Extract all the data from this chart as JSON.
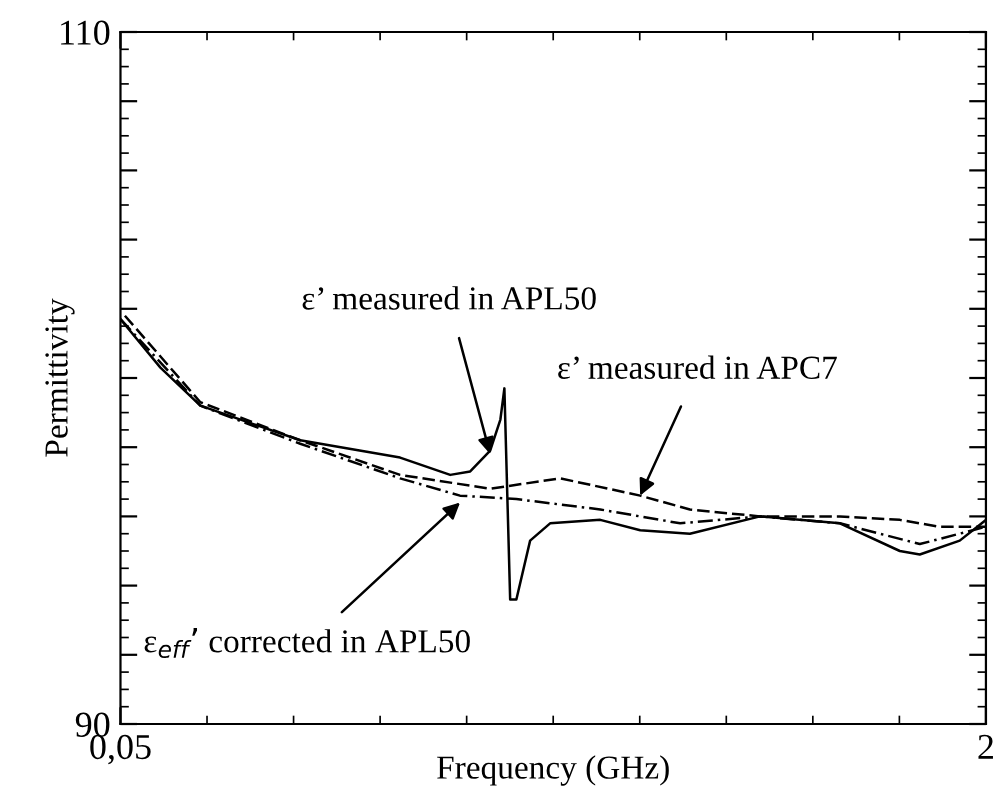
{
  "chart_data": {
    "type": "line",
    "xlabel": "Frequency (GHz)",
    "ylabel": "Permittivity",
    "xlim": [
      0.05,
      2
    ],
    "ylim": [
      90,
      110
    ],
    "xticks": [
      {
        "value": 0.05,
        "label": "0,05"
      },
      2
    ],
    "yticks": [
      90,
      {
        "value": 92,
        "label": null
      },
      {
        "value": 94,
        "label": null
      },
      {
        "value": 96,
        "label": null
      },
      {
        "value": 98,
        "label": null
      },
      {
        "value": 100,
        "label": null
      },
      {
        "value": 102,
        "label": null
      },
      {
        "value": 104,
        "label": null
      },
      {
        "value": 106,
        "label": null
      },
      {
        "value": 108,
        "label": null
      },
      110
    ],
    "grid": false,
    "legend": false,
    "marker": "none",
    "series": [
      {
        "color": "#000000",
        "line_style": "solid",
        "x": [
          0.05,
          0.14,
          0.23,
          0.455,
          0.68,
          0.793,
          0.838,
          0.883,
          0.906,
          0.915,
          0.928,
          0.942,
          0.973,
          1.018,
          1.131,
          1.221,
          1.333,
          1.491,
          1.671,
          1.806,
          1.851,
          1.941,
          2.0
        ],
        "values": [
          101.7,
          100.3,
          99.2,
          98.2,
          97.7,
          97.2,
          97.3,
          97.9,
          98.8,
          99.7,
          93.6,
          93.6,
          95.3,
          95.8,
          95.9,
          95.6,
          95.5,
          96.0,
          95.8,
          95.0,
          94.9,
          95.3,
          95.9
        ]
      },
      {
        "color": "#000000",
        "line_style": "dashed",
        "x": [
          0.06,
          0.23,
          0.455,
          0.68,
          0.883,
          1.041,
          1.221,
          1.333,
          1.491,
          1.671,
          1.806,
          1.896,
          2.0
        ],
        "values": [
          101.8,
          99.3,
          98.2,
          97.2,
          96.8,
          97.1,
          96.6,
          96.2,
          96.0,
          96.0,
          95.9,
          95.7,
          95.7
        ]
      },
      {
        "color": "#000000",
        "line_style": "dashdot",
        "x": [
          0.05,
          0.23,
          0.455,
          0.68,
          0.815,
          0.942,
          1.131,
          1.311,
          1.491,
          1.671,
          1.851,
          2.0
        ],
        "values": [
          101.7,
          99.2,
          98.1,
          97.1,
          96.6,
          96.5,
          96.2,
          95.8,
          96.0,
          95.8,
          95.2,
          95.7
        ]
      }
    ],
    "annotations": [
      {
        "text": "ε’ measured in APL50",
        "x": 0.883,
        "y": 97.8
      },
      {
        "text": "ε’ measured in APC7",
        "x": 1.221,
        "y": 96.6
      },
      {
        "text": "ε$_{eff}$’ corrected in APL50",
        "x": 0.815,
        "y": 96.4
      }
    ]
  }
}
